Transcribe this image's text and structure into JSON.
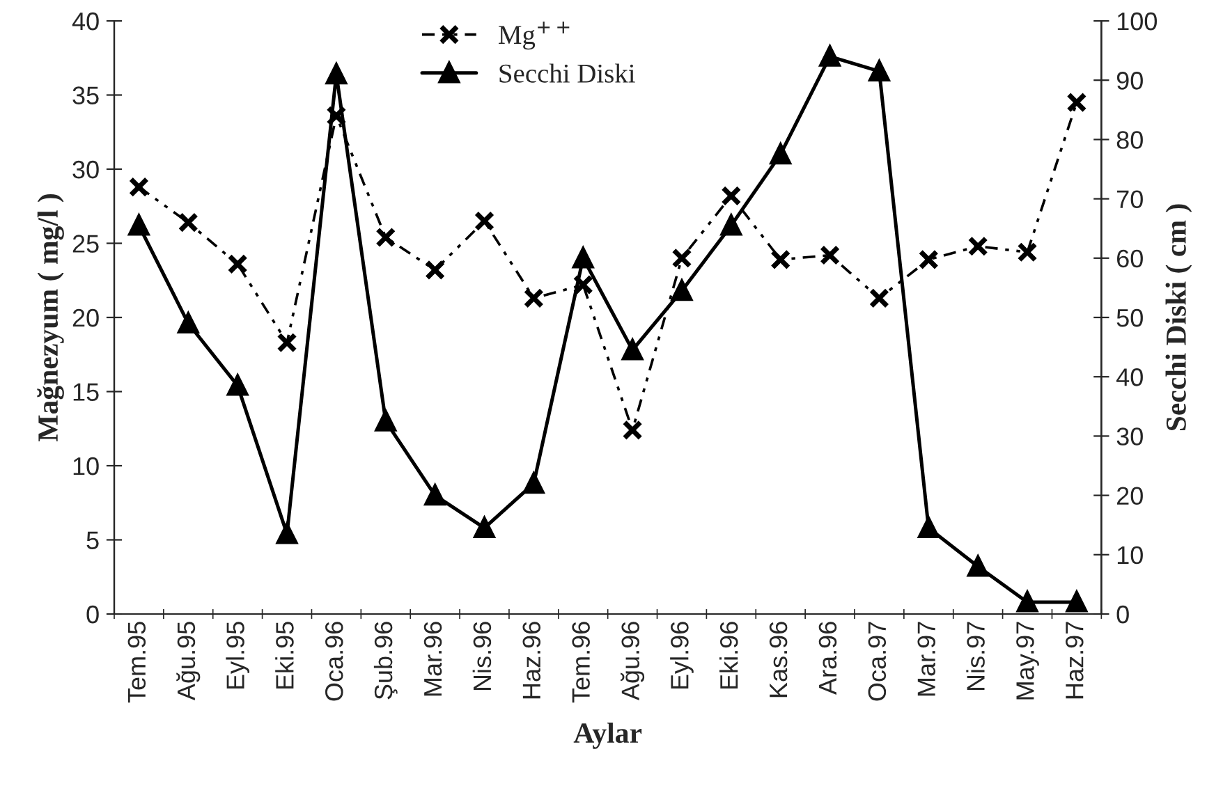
{
  "chart_data": {
    "type": "line",
    "xlabel": "Aylar",
    "ylabel": "Mağnezyum ( mg/l )",
    "y2label": "Secchi Diski ( cm )",
    "categories": [
      "Tem.95",
      "Ağu.95",
      "Eyl.95",
      "Eki.95",
      "Oca.96",
      "Şub.96",
      "Mar.96",
      "Nis.96",
      "Haz.96",
      "Tem.96",
      "Ağu.96",
      "Eyl.96",
      "Eki.96",
      "Kas.96",
      "Ara.96",
      "Oca.97",
      "Mar.97",
      "Nis.97",
      "May.97",
      "Haz.97"
    ],
    "series": [
      {
        "name": "Mg$^{++}$",
        "color": "#000000",
        "marker": "cross",
        "line_style": "dashed",
        "values": [
          28.8,
          26.4,
          23.6,
          18.3,
          33.6,
          25.4,
          23.2,
          26.5,
          21.3,
          22.2,
          12.4,
          24.0,
          28.2,
          23.9,
          24.2,
          21.3,
          23.9,
          24.8,
          24.4,
          34.5
        ]
      },
      {
        "name": "Secchi Diski",
        "color": "#000000",
        "marker": "triangle",
        "line_style": "solid",
        "axis": "y2",
        "values": [
          65.5,
          49,
          38.5,
          13.5,
          91,
          32.5,
          20,
          14.5,
          22,
          60,
          44.5,
          54.5,
          65.5,
          77.5,
          94,
          91.5,
          14.5,
          8,
          2,
          2
        ]
      }
    ],
    "ylim": [
      0,
      40
    ],
    "yticks": [
      0,
      5,
      10,
      15,
      20,
      25,
      30,
      35,
      40
    ],
    "y2lim": [
      0,
      100
    ],
    "y2ticks": [
      0,
      10,
      20,
      30,
      40,
      50,
      60,
      70,
      80,
      90,
      100
    ],
    "grid": false,
    "legend": "top"
  }
}
